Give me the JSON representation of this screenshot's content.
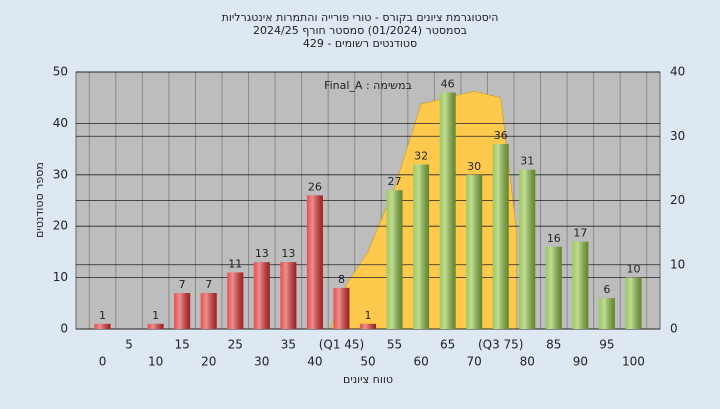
{
  "chart_data": {
    "type": "bar",
    "title": "היסטוגרמת ציונים בקורס - טורי פורייה והתמרות אינטגרליות",
    "subtitle": "בסמסטר  (01/2024)  סמסטר חורף 2024/25",
    "subtitle2": "סטודנטים רשומים - 429",
    "annotation": "Final_A : במשימה",
    "ylabel": "מספר סטודנטים",
    "xlabel": "טווח ציונים",
    "categories": [
      "0",
      "5",
      "10",
      "15",
      "20",
      "25",
      "30",
      "35",
      "40",
      "(Q1 45)",
      "50",
      "55",
      "60",
      "65",
      "70",
      "(Q3 75)",
      "80",
      "85",
      "90",
      "95",
      "100"
    ],
    "values": [
      1,
      0,
      1,
      7,
      7,
      11,
      13,
      13,
      26,
      8,
      1,
      27,
      32,
      46,
      30,
      36,
      31,
      16,
      17,
      6,
      10
    ],
    "colors": [
      "#e03030",
      "#e03030",
      "#e03030",
      "#e03030",
      "#e03030",
      "#e03030",
      "#e03030",
      "#e03030",
      "#e03030",
      "#e03030",
      "#e03030",
      "#8cbf3f",
      "#8cbf3f",
      "#8cbf3f",
      "#8cbf3f",
      "#8cbf3f",
      "#8cbf3f",
      "#8cbf3f",
      "#8cbf3f",
      "#8cbf3f",
      "#8cbf3f"
    ],
    "area": {
      "color": "#ffc94d",
      "axis": "y2",
      "x": [
        43,
        46,
        50,
        55,
        60,
        65,
        70,
        75,
        78,
        78
      ],
      "values": [
        0,
        7,
        12,
        22,
        35,
        36,
        37,
        36,
        15,
        0
      ]
    },
    "xlim": [
      -5,
      105
    ],
    "ylim": [
      0,
      50
    ],
    "yticks": [
      0,
      10,
      20,
      30,
      40,
      50
    ],
    "y2lim": [
      0,
      40
    ],
    "y2ticks": [
      0,
      10,
      20,
      30,
      40
    ],
    "grid": true
  }
}
